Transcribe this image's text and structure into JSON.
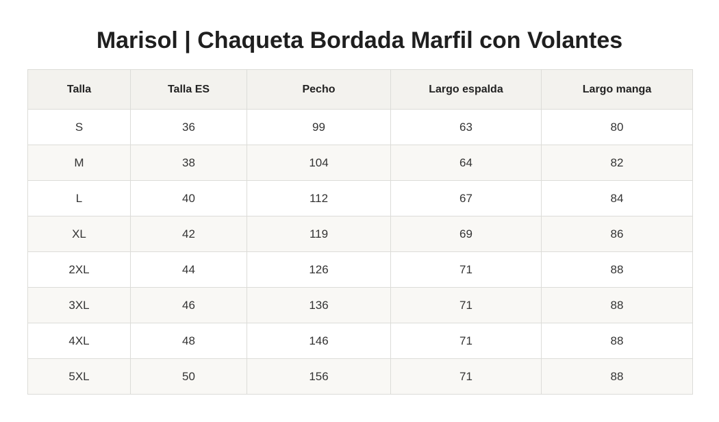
{
  "title": "Marisol | Chaqueta Bordada Marfil con Volantes",
  "table": {
    "headers": [
      "Talla",
      "Talla ES",
      "Pecho",
      "Largo espalda",
      "Largo manga"
    ],
    "rows": [
      [
        "S",
        "36",
        "99",
        "63",
        "80"
      ],
      [
        "M",
        "38",
        "104",
        "64",
        "82"
      ],
      [
        "L",
        "40",
        "112",
        "67",
        "84"
      ],
      [
        "XL",
        "42",
        "119",
        "69",
        "86"
      ],
      [
        "2XL",
        "44",
        "126",
        "71",
        "88"
      ],
      [
        "3XL",
        "46",
        "136",
        "71",
        "88"
      ],
      [
        "4XL",
        "48",
        "146",
        "71",
        "88"
      ],
      [
        "5XL",
        "50",
        "156",
        "71",
        "88"
      ]
    ]
  },
  "colors": {
    "header_bg": "#f3f2ee",
    "row_alt_bg": "#f9f8f5",
    "border": "#dcdcd8",
    "title_text": "#1f1f1f"
  }
}
